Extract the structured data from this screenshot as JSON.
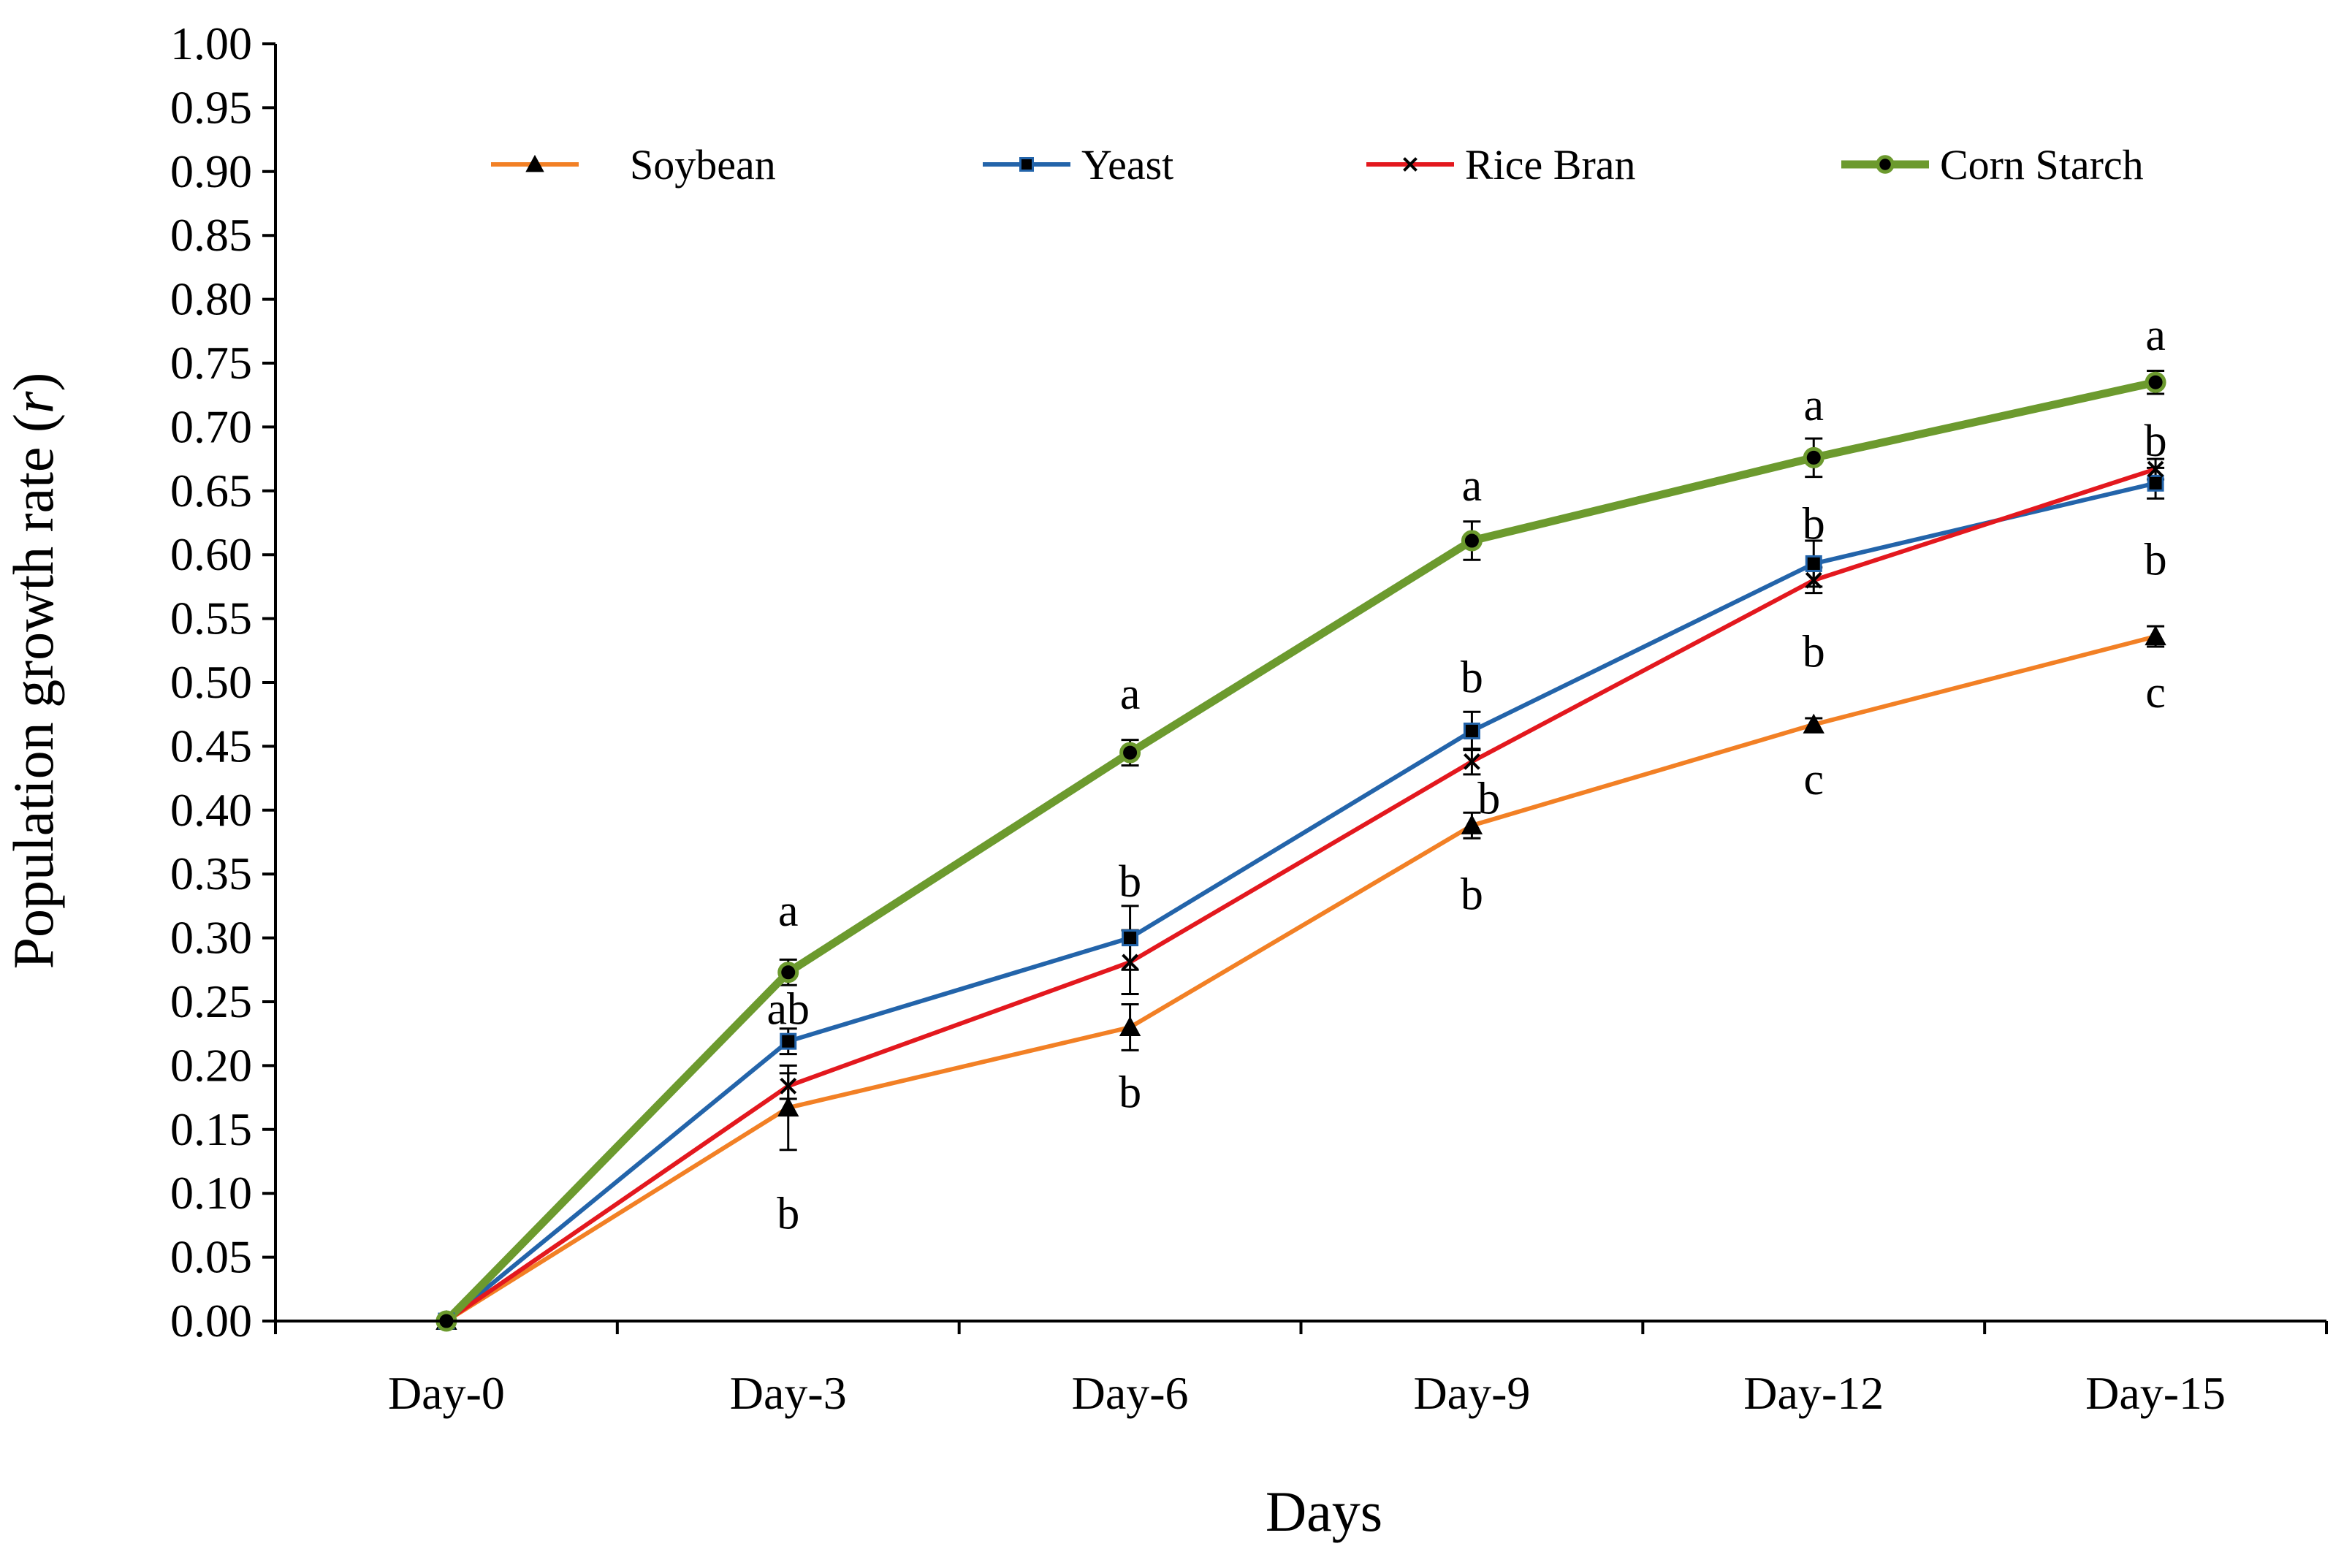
{
  "chart_data": {
    "type": "line",
    "xlabel": "Days",
    "ylabel": "Population growth rate (r)",
    "ylabel_parts": [
      "Population growth rate (",
      "r",
      ")"
    ],
    "categories": [
      "Day-0",
      "Day-3",
      "Day-6",
      "Day-9",
      "Day-12",
      "Day-15"
    ],
    "ylim": [
      0,
      1.0
    ],
    "yticks": [
      "0.00",
      "0.05",
      "0.10",
      "0.15",
      "0.20",
      "0.25",
      "0.30",
      "0.35",
      "0.40",
      "0.45",
      "0.50",
      "0.55",
      "0.60",
      "0.65",
      "0.70",
      "0.75",
      "0.80",
      "0.85",
      "0.90",
      "0.95",
      "1.00"
    ],
    "grid": false,
    "legend_position": "top",
    "series": [
      {
        "name": "Soybean",
        "color": "#F28025",
        "marker": "triangle",
        "values": [
          0.0,
          0.167,
          0.23,
          0.388,
          0.467,
          0.536
        ],
        "errors": [
          0.0,
          0.033,
          0.018,
          0.01,
          0.005,
          0.008
        ]
      },
      {
        "name": "Yeast",
        "color": "#2364AA",
        "marker": "square",
        "values": [
          0.0,
          0.219,
          0.3,
          0.462,
          0.593,
          0.656
        ],
        "errors": [
          0.0,
          0.01,
          0.025,
          0.015,
          0.018,
          0.012
        ]
      },
      {
        "name": "Rice Bran",
        "color": "#E3181E",
        "marker": "x",
        "values": [
          0.0,
          0.184,
          0.281,
          0.438,
          0.58,
          0.667
        ],
        "errors": [
          0.0,
          0.01,
          0.025,
          0.01,
          0.01,
          0.008
        ]
      },
      {
        "name": "Corn Starch",
        "color": "#6C9A2E",
        "marker": "circle",
        "values": [
          0.0,
          0.273,
          0.445,
          0.611,
          0.676,
          0.735
        ],
        "errors": [
          0.0,
          0.01,
          0.01,
          0.015,
          0.015,
          0.009
        ]
      }
    ],
    "annotations": [
      {
        "text": "a",
        "x": "Day-3",
        "y": 0.322
      },
      {
        "text": "ab",
        "x": "Day-3",
        "y": 0.245
      },
      {
        "text": "b",
        "x": "Day-3",
        "y": 0.085
      },
      {
        "text": "a",
        "x": "Day-6",
        "y": 0.492
      },
      {
        "text": "b",
        "x": "Day-6",
        "y": 0.345
      },
      {
        "text": "b",
        "x": "Day-6",
        "y": 0.18
      },
      {
        "text": "a",
        "x": "Day-9",
        "y": 0.655
      },
      {
        "text": "b",
        "x": "Day-9",
        "y": 0.505
      },
      {
        "text": "b",
        "x": "Day-9",
        "y": 0.41,
        "dx": 0.05
      },
      {
        "text": "b",
        "x": "Day-9",
        "y": 0.335
      },
      {
        "text": "a",
        "x": "Day-12",
        "y": 0.718
      },
      {
        "text": "b",
        "x": "Day-12",
        "y": 0.625
      },
      {
        "text": "b",
        "x": "Day-12",
        "y": 0.525
      },
      {
        "text": "c",
        "x": "Day-12",
        "y": 0.425
      },
      {
        "text": "a",
        "x": "Day-15",
        "y": 0.773
      },
      {
        "text": "b",
        "x": "Day-15",
        "y": 0.69
      },
      {
        "text": "b",
        "x": "Day-15",
        "y": 0.597
      },
      {
        "text": "c",
        "x": "Day-15",
        "y": 0.493
      }
    ]
  }
}
